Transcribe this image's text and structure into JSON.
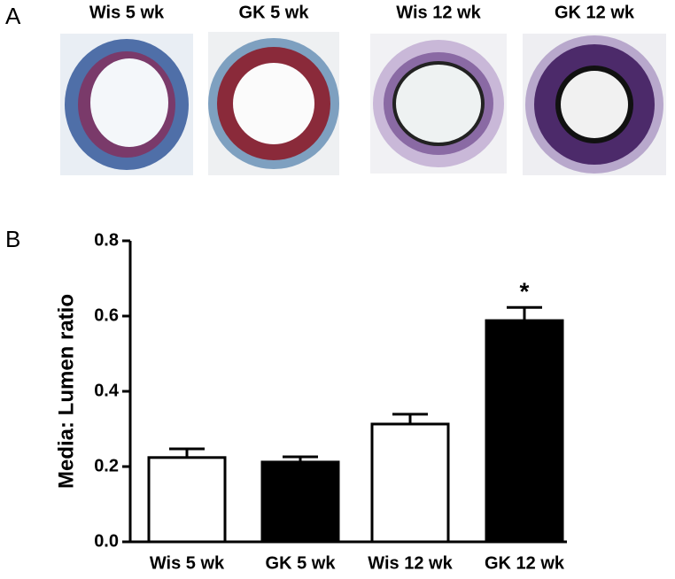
{
  "figure": {
    "panel_labels": [
      "A",
      "B"
    ],
    "image_labels": [
      "Wis 5 wk",
      "GK 5 wk",
      "Wis 12 wk",
      "GK 12 wk"
    ]
  },
  "chart_data": {
    "type": "bar",
    "y_label": "Media: Lumen ratio",
    "categories": [
      "Wis 5 wk",
      "GK 5 wk",
      "Wis 12 wk",
      "GK 12 wk"
    ],
    "values": [
      0.224,
      0.212,
      0.313,
      0.588
    ],
    "errors": [
      0.023,
      0.014,
      0.026,
      0.035
    ],
    "colors": [
      "#ffffff",
      "#000000",
      "#ffffff",
      "#000000"
    ],
    "annotation": "*",
    "ylim": [
      0,
      0.8
    ],
    "yticks": [
      {
        "value": 0,
        "label": "0.0"
      },
      0.2,
      0.4,
      0.6,
      0.8
    ]
  }
}
